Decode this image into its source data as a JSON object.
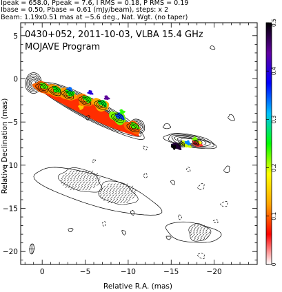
{
  "header": {
    "line1": "Ipeak = 658.0, Ppeak = 7.6, I RMS = 0.18, P RMS = 0.19",
    "line2": "Ibase = 0.50, Pbase = 0.61 (mJy/beam), steps: x 2",
    "line3": "Beam: 1.19x0.51 mas at −5.6 deg., Nat. Wgt. (no taper)"
  },
  "chart_data": {
    "type": "heatmap",
    "title": "0430+052, 2011-10-03, VLBA 15.4 GHz",
    "subtitle": "MOJAVE Program",
    "xlabel": "Relative R.A. (mas)",
    "ylabel": "Relative Declination (mas)",
    "xlim": [
      2.5,
      -25.0
    ],
    "ylim": [
      -21.5,
      6.5
    ],
    "xticks": [
      0,
      -5,
      -10,
      -15,
      -20
    ],
    "xtick_labels": [
      "0",
      "−5",
      "−10",
      "−15",
      "−20"
    ],
    "yticks": [
      5,
      0,
      -5,
      -10,
      -15,
      -20
    ],
    "ytick_labels": [
      "5",
      "0",
      "−5",
      "−10",
      "−15",
      "−20"
    ],
    "colorbar": {
      "min": 0,
      "max": 0.5,
      "ticks": [
        0,
        0.1,
        0.2,
        0.3,
        0.4,
        0.5
      ],
      "tick_labels": [
        "0",
        "0.1",
        "0.2",
        "0.3",
        "0.4",
        "0.5"
      ],
      "colors": [
        "#ffffff",
        "#ff0000",
        "#ffa500",
        "#ffff00",
        "#00ff00",
        "#00c0ff",
        "#0000ff",
        "#6000a0",
        "#000000"
      ]
    },
    "upper_jet": {
      "knots": [
        {
          "ra": 0.0,
          "dec": -1.0,
          "intensity": 0.1
        },
        {
          "ra": -1.5,
          "dec": -1.4,
          "intensity": 0.12
        },
        {
          "ra": -3.0,
          "dec": -1.8,
          "intensity": 0.12
        },
        {
          "ra": -5.0,
          "dec": -2.5,
          "intensity": 0.11
        },
        {
          "ra": -6.8,
          "dec": -3.0,
          "intensity": 0.13
        },
        {
          "ra": -8.8,
          "dec": -4.5,
          "intensity": 0.22
        },
        {
          "ra": -10.5,
          "dec": -5.6,
          "intensity": 0.1
        },
        {
          "ra": -15.6,
          "dec": -7.8,
          "intensity": 0.48
        },
        {
          "ra": -16.7,
          "dec": -7.6,
          "intensity": 0.2
        },
        {
          "ra": -18.0,
          "dec": -7.5,
          "intensity": 0.05
        }
      ]
    },
    "lower_jet": {
      "polarization_vectors_regions": [
        {
          "ra_min": -2.0,
          "ra_max": -7.0,
          "dec_min": -13.0,
          "dec_max": -10.5
        },
        {
          "ra_min": -6.5,
          "ra_max": -11.0,
          "dec_min": -14.5,
          "dec_max": -12.0
        },
        {
          "ra_min": -17.0,
          "ra_max": -19.5,
          "dec_min": -18.8,
          "dec_max": -16.8
        }
      ]
    },
    "beam": {
      "major_mas": 1.19,
      "minor_mas": 0.51,
      "pa_deg": -5.6
    }
  }
}
